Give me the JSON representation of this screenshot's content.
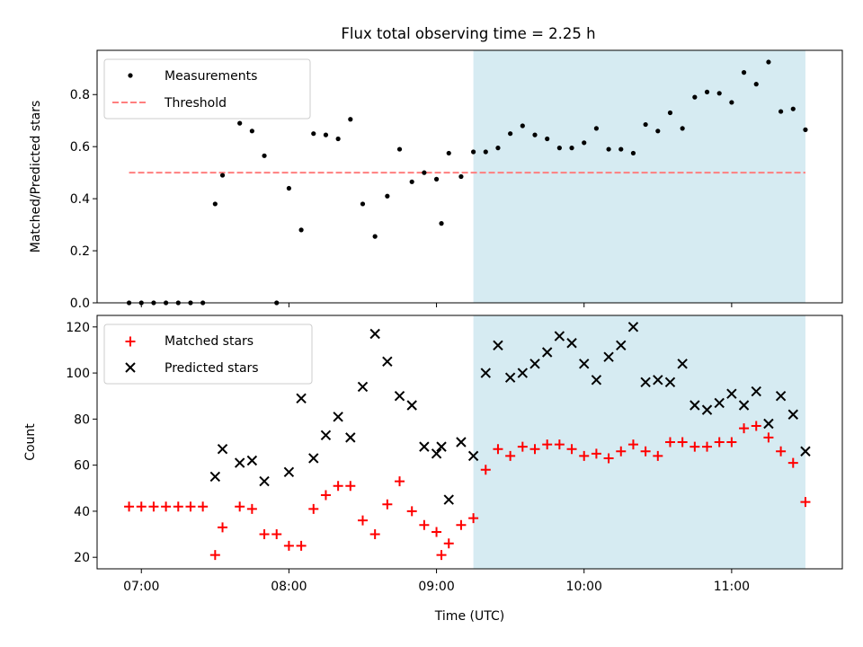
{
  "title": "Flux total observing time = 2.25 h",
  "colors": {
    "highlight": "#add8e6",
    "measurement": "#000000",
    "threshold": "#ff7f7f",
    "matched": "#ff0000",
    "predicted": "#000000"
  },
  "chart_data": [
    {
      "type": "scatter",
      "ylabel": "Matched/Predicted stars",
      "xlim": [
        "06:42",
        "11:45"
      ],
      "ylim": [
        0,
        0.97
      ],
      "yticks": [
        0.0,
        0.2,
        0.4,
        0.6,
        0.8
      ],
      "ytick_labels": [
        "0.0",
        "0.2",
        "0.4",
        "0.6",
        "0.8"
      ],
      "highlight_span": [
        "09:15",
        "11:30"
      ],
      "legend": {
        "placement": "top-left",
        "entries": [
          "Measurements",
          "Threshold"
        ]
      },
      "threshold": {
        "name": "Threshold",
        "value": 0.5,
        "x_range": [
          "06:55",
          "11:30"
        ]
      },
      "series": [
        {
          "name": "Measurements",
          "marker": "dot",
          "points": [
            [
              "06:55",
              0.0
            ],
            [
              "07:00",
              0.0
            ],
            [
              "07:05",
              0.0
            ],
            [
              "07:10",
              0.0
            ],
            [
              "07:15",
              0.0
            ],
            [
              "07:20",
              0.0
            ],
            [
              "07:25",
              0.0
            ],
            [
              "07:30",
              0.38
            ],
            [
              "07:33",
              0.49
            ],
            [
              "07:40",
              0.69
            ],
            [
              "07:45",
              0.66
            ],
            [
              "07:50",
              0.565
            ],
            [
              "07:55",
              0.0
            ],
            [
              "08:00",
              0.44
            ],
            [
              "08:05",
              0.28
            ],
            [
              "08:10",
              0.65
            ],
            [
              "08:15",
              0.645
            ],
            [
              "08:20",
              0.63
            ],
            [
              "08:25",
              0.705
            ],
            [
              "08:30",
              0.38
            ],
            [
              "08:35",
              0.255
            ],
            [
              "08:40",
              0.41
            ],
            [
              "08:45",
              0.59
            ],
            [
              "08:50",
              0.465
            ],
            [
              "08:55",
              0.5
            ],
            [
              "09:00",
              0.475
            ],
            [
              "09:02",
              0.305
            ],
            [
              "09:05",
              0.575
            ],
            [
              "09:10",
              0.485
            ],
            [
              "09:15",
              0.58
            ],
            [
              "09:20",
              0.58
            ],
            [
              "09:25",
              0.595
            ],
            [
              "09:30",
              0.65
            ],
            [
              "09:35",
              0.68
            ],
            [
              "09:40",
              0.645
            ],
            [
              "09:45",
              0.63
            ],
            [
              "09:50",
              0.595
            ],
            [
              "09:55",
              0.595
            ],
            [
              "10:00",
              0.615
            ],
            [
              "10:05",
              0.67
            ],
            [
              "10:10",
              0.59
            ],
            [
              "10:15",
              0.59
            ],
            [
              "10:20",
              0.575
            ],
            [
              "10:25",
              0.685
            ],
            [
              "10:30",
              0.66
            ],
            [
              "10:35",
              0.73
            ],
            [
              "10:40",
              0.67
            ],
            [
              "10:45",
              0.79
            ],
            [
              "10:50",
              0.81
            ],
            [
              "10:55",
              0.805
            ],
            [
              "11:00",
              0.77
            ],
            [
              "11:05",
              0.885
            ],
            [
              "11:10",
              0.84
            ],
            [
              "11:15",
              0.925
            ],
            [
              "11:20",
              0.735
            ],
            [
              "11:25",
              0.745
            ],
            [
              "11:30",
              0.665
            ]
          ]
        }
      ]
    },
    {
      "type": "scatter",
      "xlabel": "Time (UTC)",
      "ylabel": "Count",
      "xlim": [
        "06:42",
        "11:45"
      ],
      "ylim": [
        15,
        125
      ],
      "yticks": [
        20,
        40,
        60,
        80,
        100,
        120
      ],
      "ytick_labels": [
        "20",
        "40",
        "60",
        "80",
        "100",
        "120"
      ],
      "xticks": [
        "07:00",
        "08:00",
        "09:00",
        "10:00",
        "11:00"
      ],
      "xtick_labels": [
        "07:00",
        "08:00",
        "09:00",
        "10:00",
        "11:00"
      ],
      "highlight_span": [
        "09:15",
        "11:30"
      ],
      "legend": {
        "placement": "top-left",
        "entries": [
          "Matched stars",
          "Predicted stars"
        ]
      },
      "series": [
        {
          "name": "Matched stars",
          "marker": "plus",
          "points": [
            [
              "06:55",
              42
            ],
            [
              "07:00",
              42
            ],
            [
              "07:05",
              42
            ],
            [
              "07:10",
              42
            ],
            [
              "07:15",
              42
            ],
            [
              "07:20",
              42
            ],
            [
              "07:25",
              42
            ],
            [
              "07:30",
              21
            ],
            [
              "07:33",
              33
            ],
            [
              "07:40",
              42
            ],
            [
              "07:45",
              41
            ],
            [
              "07:50",
              30
            ],
            [
              "07:55",
              30
            ],
            [
              "08:00",
              25
            ],
            [
              "08:05",
              25
            ],
            [
              "08:10",
              41
            ],
            [
              "08:15",
              47
            ],
            [
              "08:20",
              51
            ],
            [
              "08:25",
              51
            ],
            [
              "08:30",
              36
            ],
            [
              "08:35",
              30
            ],
            [
              "08:40",
              43
            ],
            [
              "08:45",
              53
            ],
            [
              "08:50",
              40
            ],
            [
              "08:55",
              34
            ],
            [
              "09:00",
              31
            ],
            [
              "09:02",
              21
            ],
            [
              "09:05",
              26
            ],
            [
              "09:10",
              34
            ],
            [
              "09:15",
              37
            ],
            [
              "09:20",
              58
            ],
            [
              "09:25",
              67
            ],
            [
              "09:30",
              64
            ],
            [
              "09:35",
              68
            ],
            [
              "09:40",
              67
            ],
            [
              "09:45",
              69
            ],
            [
              "09:50",
              69
            ],
            [
              "09:55",
              67
            ],
            [
              "10:00",
              64
            ],
            [
              "10:05",
              65
            ],
            [
              "10:10",
              63
            ],
            [
              "10:15",
              66
            ],
            [
              "10:20",
              69
            ],
            [
              "10:25",
              66
            ],
            [
              "10:30",
              64
            ],
            [
              "10:35",
              70
            ],
            [
              "10:40",
              70
            ],
            [
              "10:45",
              68
            ],
            [
              "10:50",
              68
            ],
            [
              "10:55",
              70
            ],
            [
              "11:00",
              70
            ],
            [
              "11:05",
              76
            ],
            [
              "11:10",
              77
            ],
            [
              "11:15",
              72
            ],
            [
              "11:20",
              66
            ],
            [
              "11:25",
              61
            ],
            [
              "11:30",
              44
            ]
          ]
        },
        {
          "name": "Predicted stars",
          "marker": "x",
          "points": [
            [
              "07:30",
              55
            ],
            [
              "07:33",
              67
            ],
            [
              "07:40",
              61
            ],
            [
              "07:45",
              62
            ],
            [
              "07:50",
              53
            ],
            [
              "08:00",
              57
            ],
            [
              "08:05",
              89
            ],
            [
              "08:10",
              63
            ],
            [
              "08:15",
              73
            ],
            [
              "08:20",
              81
            ],
            [
              "08:25",
              72
            ],
            [
              "08:30",
              94
            ],
            [
              "08:35",
              117
            ],
            [
              "08:40",
              105
            ],
            [
              "08:45",
              90
            ],
            [
              "08:50",
              86
            ],
            [
              "08:55",
              68
            ],
            [
              "09:00",
              65
            ],
            [
              "09:02",
              68
            ],
            [
              "09:05",
              45
            ],
            [
              "09:10",
              70
            ],
            [
              "09:15",
              64
            ],
            [
              "09:20",
              100
            ],
            [
              "09:25",
              112
            ],
            [
              "09:30",
              98
            ],
            [
              "09:35",
              100
            ],
            [
              "09:40",
              104
            ],
            [
              "09:45",
              109
            ],
            [
              "09:50",
              116
            ],
            [
              "09:55",
              113
            ],
            [
              "10:00",
              104
            ],
            [
              "10:05",
              97
            ],
            [
              "10:10",
              107
            ],
            [
              "10:15",
              112
            ],
            [
              "10:20",
              120
            ],
            [
              "10:25",
              96
            ],
            [
              "10:30",
              97
            ],
            [
              "10:35",
              96
            ],
            [
              "10:40",
              104
            ],
            [
              "10:45",
              86
            ],
            [
              "10:50",
              84
            ],
            [
              "10:55",
              87
            ],
            [
              "11:00",
              91
            ],
            [
              "11:05",
              86
            ],
            [
              "11:10",
              92
            ],
            [
              "11:15",
              78
            ],
            [
              "11:20",
              90
            ],
            [
              "11:25",
              82
            ],
            [
              "11:30",
              66
            ]
          ]
        }
      ]
    }
  ]
}
